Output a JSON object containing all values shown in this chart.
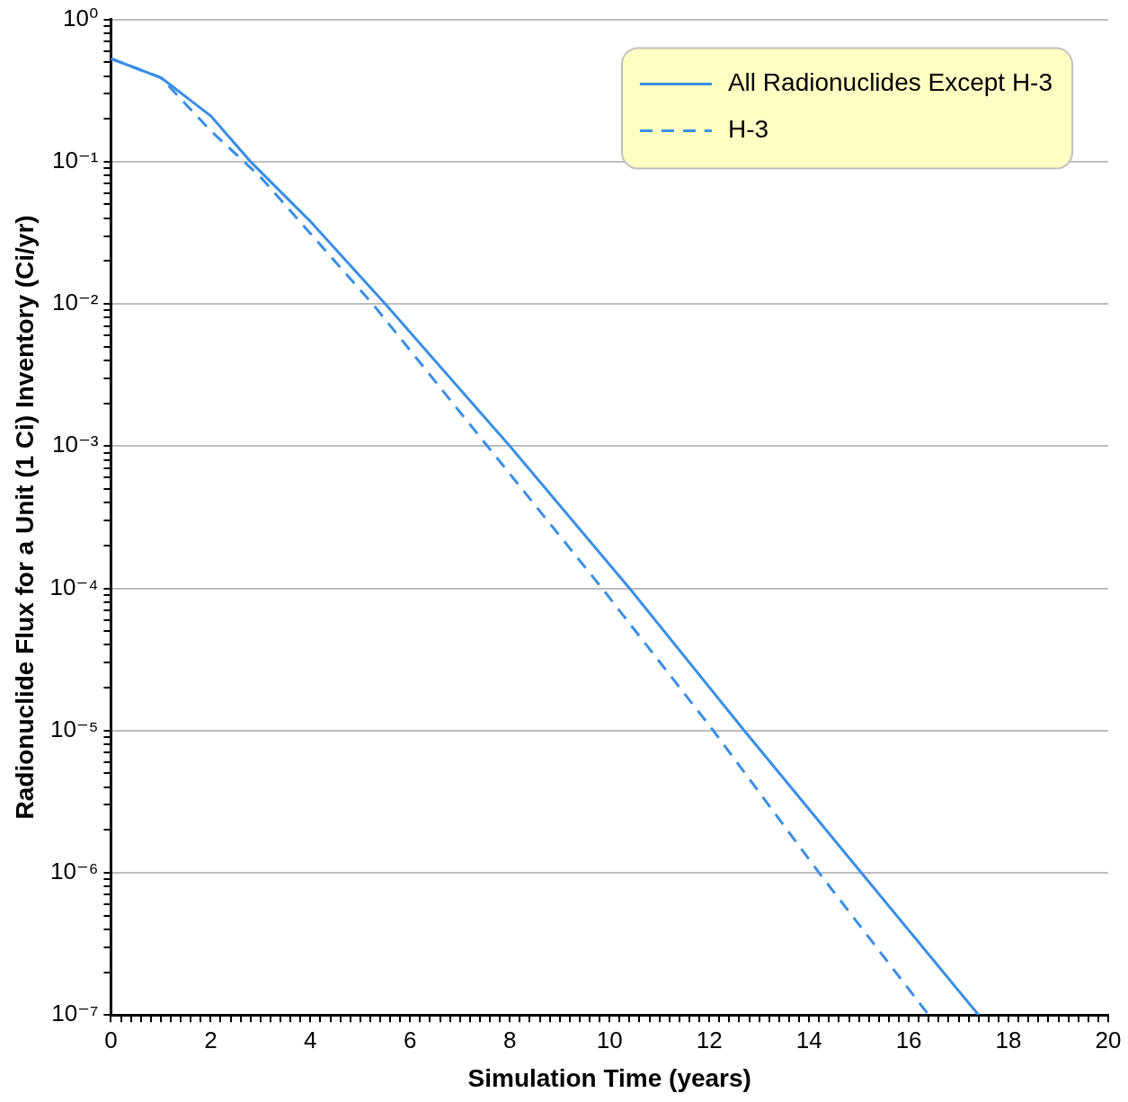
{
  "chart_data": {
    "type": "line",
    "xlabel": "Simulation Time (years)",
    "ylabel": "Radionuclide Flux for a Unit (1 Ci) Inventory (Ci/yr)",
    "log": "y",
    "grid": "y",
    "legend": "top right",
    "marker": "none",
    "xlim": [
      0,
      20
    ],
    "xticks": [
      0,
      {
        "value": 0.2,
        "label": null
      },
      {
        "value": 0.4,
        "label": null
      },
      {
        "value": 0.6,
        "label": null
      },
      {
        "value": 0.8,
        "label": null
      },
      {
        "value": 1,
        "label": null
      },
      {
        "value": 1.2,
        "label": null
      },
      {
        "value": 1.4,
        "label": null
      },
      {
        "value": 1.6,
        "label": null
      },
      {
        "value": 1.8,
        "label": null
      },
      2,
      {
        "value": 2.2,
        "label": null
      },
      {
        "value": 2.4,
        "label": null
      },
      {
        "value": 2.6,
        "label": null
      },
      {
        "value": 2.8,
        "label": null
      },
      {
        "value": 3,
        "label": null
      },
      {
        "value": 3.2,
        "label": null
      },
      {
        "value": 3.4,
        "label": null
      },
      {
        "value": 3.6,
        "label": null
      },
      {
        "value": 3.8,
        "label": null
      },
      4,
      {
        "value": 4.2,
        "label": null
      },
      {
        "value": 4.4,
        "label": null
      },
      {
        "value": 4.6,
        "label": null
      },
      {
        "value": 4.8,
        "label": null
      },
      {
        "value": 5,
        "label": null
      },
      {
        "value": 5.2,
        "label": null
      },
      {
        "value": 5.4,
        "label": null
      },
      {
        "value": 5.6,
        "label": null
      },
      {
        "value": 5.8,
        "label": null
      },
      6,
      {
        "value": 6.2,
        "label": null
      },
      {
        "value": 6.4,
        "label": null
      },
      {
        "value": 6.6,
        "label": null
      },
      {
        "value": 6.8,
        "label": null
      },
      {
        "value": 7,
        "label": null
      },
      {
        "value": 7.2,
        "label": null
      },
      {
        "value": 7.4,
        "label": null
      },
      {
        "value": 7.6,
        "label": null
      },
      {
        "value": 7.8,
        "label": null
      },
      8,
      {
        "value": 8.2,
        "label": null
      },
      {
        "value": 8.4,
        "label": null
      },
      {
        "value": 8.6,
        "label": null
      },
      {
        "value": 8.8,
        "label": null
      },
      {
        "value": 9,
        "label": null
      },
      {
        "value": 9.2,
        "label": null
      },
      {
        "value": 9.4,
        "label": null
      },
      {
        "value": 9.6,
        "label": null
      },
      {
        "value": 9.8,
        "label": null
      },
      10,
      {
        "value": 10.2,
        "label": null
      },
      {
        "value": 10.4,
        "label": null
      },
      {
        "value": 10.6,
        "label": null
      },
      {
        "value": 10.8,
        "label": null
      },
      {
        "value": 11,
        "label": null
      },
      {
        "value": 11.2,
        "label": null
      },
      {
        "value": 11.4,
        "label": null
      },
      {
        "value": 11.6,
        "label": null
      },
      {
        "value": 11.8,
        "label": null
      },
      12,
      {
        "value": 12.2,
        "label": null
      },
      {
        "value": 12.4,
        "label": null
      },
      {
        "value": 12.6,
        "label": null
      },
      {
        "value": 12.8,
        "label": null
      },
      {
        "value": 13,
        "label": null
      },
      {
        "value": 13.2,
        "label": null
      },
      {
        "value": 13.4,
        "label": null
      },
      {
        "value": 13.6,
        "label": null
      },
      {
        "value": 13.8,
        "label": null
      },
      14,
      {
        "value": 14.2,
        "label": null
      },
      {
        "value": 14.4,
        "label": null
      },
      {
        "value": 14.6,
        "label": null
      },
      {
        "value": 14.8,
        "label": null
      },
      {
        "value": 15,
        "label": null
      },
      {
        "value": 15.2,
        "label": null
      },
      {
        "value": 15.4,
        "label": null
      },
      {
        "value": 15.6,
        "label": null
      },
      {
        "value": 15.8,
        "label": null
      },
      16,
      {
        "value": 16.2,
        "label": null
      },
      {
        "value": 16.4,
        "label": null
      },
      {
        "value": 16.6,
        "label": null
      },
      {
        "value": 16.8,
        "label": null
      },
      {
        "value": 17,
        "label": null
      },
      {
        "value": 17.2,
        "label": null
      },
      {
        "value": 17.4,
        "label": null
      },
      {
        "value": 17.6,
        "label": null
      },
      {
        "value": 17.8,
        "label": null
      },
      18,
      {
        "value": 18.2,
        "label": null
      },
      {
        "value": 18.4,
        "label": null
      },
      {
        "value": 18.6,
        "label": null
      },
      {
        "value": 18.8,
        "label": null
      },
      {
        "value": 19,
        "label": null
      },
      {
        "value": 19.2,
        "label": null
      },
      {
        "value": 19.4,
        "label": null
      },
      {
        "value": 19.6,
        "label": null
      },
      {
        "value": 19.8,
        "label": null
      },
      20
    ],
    "ylim": [
      1e-07,
      1
    ],
    "yticks": [
      {
        "value": 1e-07,
        "label": "10⁻⁷"
      },
      {
        "value": 2e-07,
        "label": null
      },
      {
        "value": 3e-07,
        "label": null
      },
      {
        "value": 4e-07,
        "label": null
      },
      {
        "value": 5e-07,
        "label": null
      },
      {
        "value": 6e-07,
        "label": null
      },
      {
        "value": 7e-07,
        "label": null
      },
      {
        "value": 8e-07,
        "label": null
      },
      {
        "value": 9e-07,
        "label": null
      },
      {
        "value": 1e-06,
        "label": "10⁻⁶"
      },
      {
        "value": 2e-06,
        "label": null
      },
      {
        "value": 3e-06,
        "label": null
      },
      {
        "value": 4e-06,
        "label": null
      },
      {
        "value": 5e-06,
        "label": null
      },
      {
        "value": 6e-06,
        "label": null
      },
      {
        "value": 7e-06,
        "label": null
      },
      {
        "value": 8e-06,
        "label": null
      },
      {
        "value": 9e-06,
        "label": null
      },
      {
        "value": 1e-05,
        "label": "10⁻⁵"
      },
      {
        "value": 2e-05,
        "label": null
      },
      {
        "value": 3e-05,
        "label": null
      },
      {
        "value": 4e-05,
        "label": null
      },
      {
        "value": 5e-05,
        "label": null
      },
      {
        "value": 6e-05,
        "label": null
      },
      {
        "value": 7e-05,
        "label": null
      },
      {
        "value": 8e-05,
        "label": null
      },
      {
        "value": 9e-05,
        "label": null
      },
      {
        "value": 0.0001,
        "label": "10⁻⁴"
      },
      {
        "value": 0.0002,
        "label": null
      },
      {
        "value": 0.0003,
        "label": null
      },
      {
        "value": 0.0004,
        "label": null
      },
      {
        "value": 0.0005,
        "label": null
      },
      {
        "value": 0.0006,
        "label": null
      },
      {
        "value": 0.0007,
        "label": null
      },
      {
        "value": 0.0008,
        "label": null
      },
      {
        "value": 0.0009,
        "label": null
      },
      {
        "value": 0.001,
        "label": "10⁻³"
      },
      {
        "value": 0.002,
        "label": null
      },
      {
        "value": 0.003,
        "label": null
      },
      {
        "value": 0.004,
        "label": null
      },
      {
        "value": 0.005,
        "label": null
      },
      {
        "value": 0.006,
        "label": null
      },
      {
        "value": 0.007,
        "label": null
      },
      {
        "value": 0.008,
        "label": null
      },
      {
        "value": 0.009,
        "label": null
      },
      {
        "value": 0.01,
        "label": "10⁻²"
      },
      {
        "value": 0.02,
        "label": null
      },
      {
        "value": 0.03,
        "label": null
      },
      {
        "value": 0.04,
        "label": null
      },
      {
        "value": 0.05,
        "label": null
      },
      {
        "value": 0.06,
        "label": null
      },
      {
        "value": 0.07,
        "label": null
      },
      {
        "value": 0.08,
        "label": null
      },
      {
        "value": 0.09,
        "label": null
      },
      {
        "value": 0.1,
        "label": "10⁻¹"
      },
      {
        "value": 0.2,
        "label": null
      },
      {
        "value": 0.3,
        "label": null
      },
      {
        "value": 0.4,
        "label": null
      },
      {
        "value": 0.5,
        "label": null
      },
      {
        "value": 0.6,
        "label": null
      },
      {
        "value": 0.7,
        "label": null
      },
      {
        "value": 0.8,
        "label": null
      },
      {
        "value": 0.9,
        "label": null
      },
      {
        "value": 1,
        "label": "10⁰"
      }
    ],
    "series": [
      {
        "name": "All Radionuclides Except H-3",
        "color": "#3a8ee6",
        "line_style": "solid",
        "x": [
          0,
          1,
          2,
          2.8,
          4,
          5.5,
          8,
          10.4,
          12.7,
          15.05,
          17.4
        ],
        "values": [
          0.53,
          0.39,
          0.21,
          0.1,
          0.038,
          0.01,
          0.001,
          0.0001,
          1e-05,
          1e-06,
          1e-07
        ]
      },
      {
        "name": "H-3",
        "color": "#3a8ee6",
        "line_style": "dashed",
        "x": [
          0,
          1,
          2,
          3,
          5.3,
          7.55,
          9.85,
          12.08,
          14.2,
          16.4
        ],
        "values": [
          0.53,
          0.39,
          0.165,
          0.078,
          0.0095,
          0.001,
          0.0001,
          1e-05,
          1e-06,
          1e-07
        ]
      }
    ]
  }
}
